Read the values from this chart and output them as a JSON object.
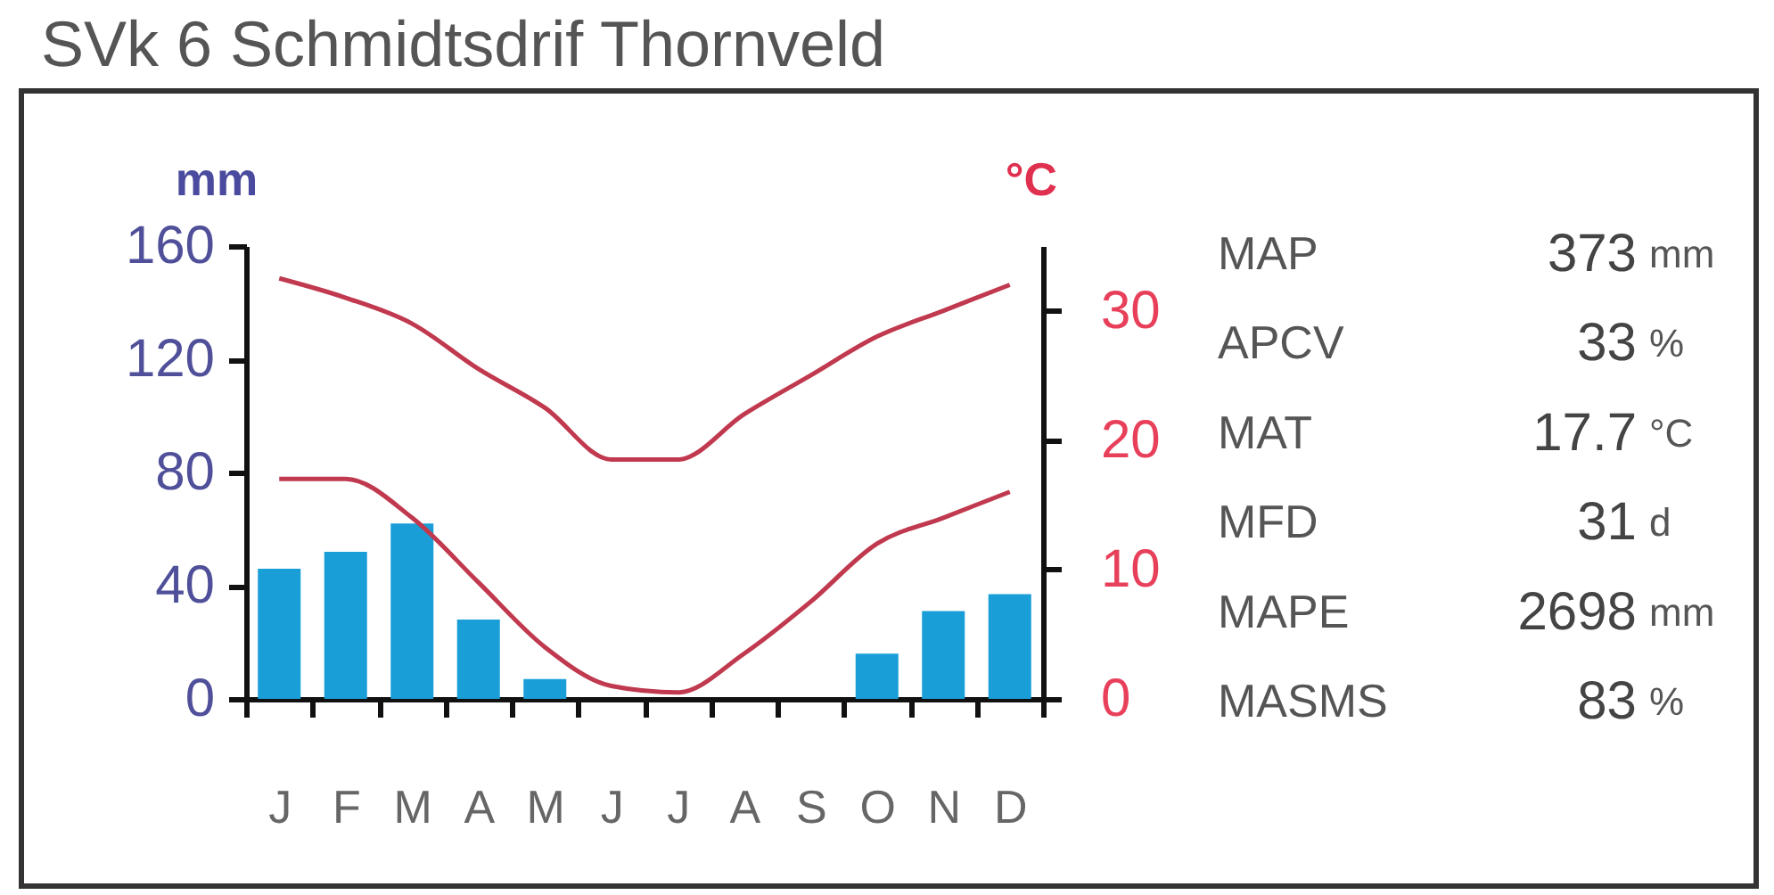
{
  "chart_data": {
    "type": "bar",
    "title": "SVk 6 Schmidtsdrif Thornveld",
    "ylabel": "mm",
    "y2label": "°C",
    "categories": [
      "J",
      "F",
      "M",
      "A",
      "M",
      "J",
      "J",
      "A",
      "S",
      "O",
      "N",
      "D"
    ],
    "series": [
      {
        "color": "#1a9ed8",
        "values": [
          46,
          52,
          62,
          28,
          7,
          0,
          0,
          0,
          0,
          16,
          31,
          37
        ]
      },
      {
        "type": "line",
        "axis": "y2",
        "color": "#c0394e",
        "values": [
          32.5,
          31,
          29,
          25.5,
          22.5,
          18.5,
          18.5,
          22,
          25,
          28,
          30,
          32
        ]
      },
      {
        "type": "line",
        "axis": "y2",
        "color": "#c0394e",
        "values": [
          17,
          17,
          14,
          9,
          4,
          1,
          0.5,
          3.5,
          7.5,
          12,
          14,
          16
        ]
      }
    ],
    "ylim": [
      0,
      160
    ],
    "yticks": [
      0,
      40,
      80,
      120,
      160
    ],
    "y2lim": [
      0,
      35
    ],
    "y2ticks": [
      0,
      10,
      20,
      30
    ],
    "annotations": [
      "MAP",
      "373",
      "mm",
      "APCV",
      "33",
      "%",
      "MAT",
      "17.7",
      "°C",
      "MFD",
      "31",
      "d",
      "MAPE",
      "2698",
      "mm",
      "MASMS",
      "83",
      "%"
    ]
  }
}
